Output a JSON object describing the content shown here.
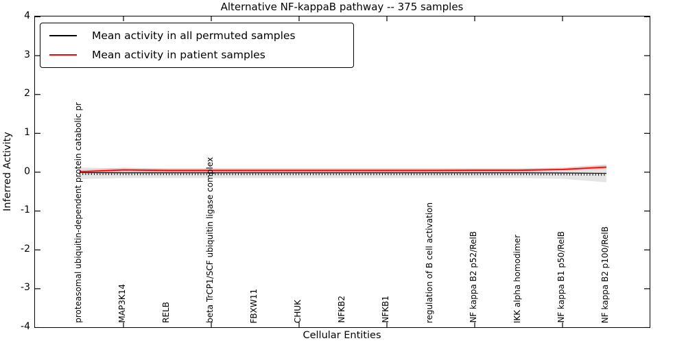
{
  "title": "Alternative NF-kappaB pathway -- 375 samples",
  "axes": {
    "ylabel": "Inferred Activity",
    "xlabel": "Cellular Entities",
    "ytick_labels": [
      "4",
      "3",
      "2",
      "1",
      "0",
      "-1",
      "-2",
      "-3",
      "-4"
    ]
  },
  "legend": {
    "items": [
      {
        "label": "Mean activity in all permuted samples",
        "color": "#000000"
      },
      {
        "label": "Mean activity in patient samples",
        "color": "#ff0000"
      }
    ]
  },
  "chart_data": {
    "type": "line",
    "title": "Alternative NF-kappaB pathway -- 375 samples",
    "xlabel": "Cellular Entities",
    "ylabel": "Inferred Activity",
    "ylim": [
      -4,
      4
    ],
    "grid": false,
    "legend_position": "upper left",
    "categories": [
      "proteasomal ubiquitin-dependent protein catabolic pr",
      "MAP3K14",
      "RELB",
      "beta TrCP1/SCF ubiquitin ligase complex",
      "FBXW11",
      "CHUK",
      "NFKB2",
      "NFKB1",
      "regulation of B cell activation",
      "NF kappa B2 p52/RelB",
      "IKK alpha homodimer",
      "NF kappa B1 p50/RelB",
      "NF kappa B2 p100/RelB"
    ],
    "series": [
      {
        "name": "Mean activity in all permuted samples",
        "color": "#000000",
        "band_color": "rgba(0,0,0,0.10)",
        "values": [
          -0.01,
          -0.015,
          -0.015,
          -0.015,
          -0.015,
          -0.015,
          -0.015,
          -0.015,
          -0.015,
          -0.015,
          -0.015,
          -0.02,
          -0.03
        ],
        "band_upper": [
          0.12,
          0.1,
          0.1,
          0.1,
          0.1,
          0.1,
          0.1,
          0.1,
          0.1,
          0.1,
          0.1,
          0.12,
          0.2
        ],
        "band_lower": [
          -0.18,
          -0.15,
          -0.15,
          -0.15,
          -0.15,
          -0.15,
          -0.15,
          -0.15,
          -0.15,
          -0.15,
          -0.15,
          -0.17,
          -0.26
        ]
      },
      {
        "name": "Mean activity in patient samples",
        "color": "#ff0000",
        "band_color": "rgba(255,0,0,0.15)",
        "values": [
          0.01,
          0.06,
          0.045,
          0.045,
          0.045,
          0.045,
          0.045,
          0.045,
          0.045,
          0.05,
          0.05,
          0.07,
          0.13
        ],
        "band_upper": [
          0.05,
          0.12,
          0.09,
          0.09,
          0.09,
          0.09,
          0.09,
          0.09,
          0.09,
          0.09,
          0.09,
          0.11,
          0.18
        ],
        "band_lower": [
          -0.02,
          0.01,
          0.0,
          0.0,
          0.0,
          0.0,
          0.0,
          0.0,
          0.0,
          0.01,
          0.01,
          0.03,
          0.08
        ]
      }
    ]
  }
}
